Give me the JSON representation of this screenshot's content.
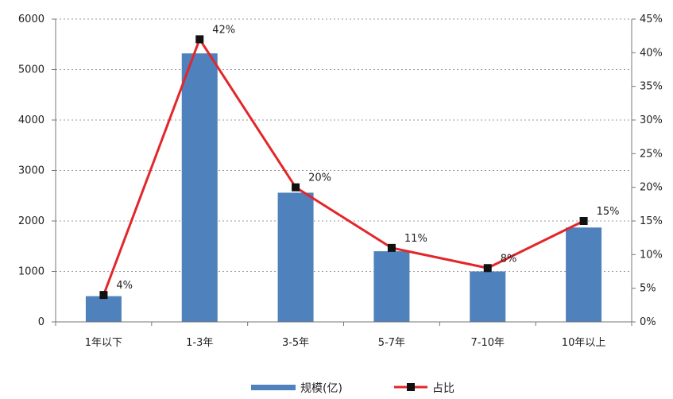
{
  "chart_data": {
    "type": "bar+line",
    "categories": [
      "1年以下",
      "1-3年",
      "3-5年",
      "5-7年",
      "7-10年",
      "10年以上"
    ],
    "series": [
      {
        "name": "规模(亿)",
        "type": "bar",
        "axis": "left",
        "values": [
          510,
          5320,
          2560,
          1400,
          1000,
          1870
        ],
        "color": "#4F81BD"
      },
      {
        "name": "占比",
        "type": "line",
        "axis": "right",
        "values": [
          4,
          42,
          20,
          11,
          8,
          15
        ],
        "data_labels": [
          "4%",
          "42%",
          "20%",
          "11%",
          "8%",
          "15%"
        ],
        "color": "#E3262A",
        "marker_color": "#111111"
      }
    ],
    "y_left": {
      "range": [
        0,
        6000
      ],
      "ticks": [
        "0",
        "1000",
        "2000",
        "3000",
        "4000",
        "5000",
        "6000"
      ]
    },
    "y_right": {
      "range": [
        0,
        45
      ],
      "ticks": [
        "0%",
        "5%",
        "10%",
        "15%",
        "20%",
        "25%",
        "30%",
        "35%",
        "40%",
        "45%"
      ]
    },
    "grid": "horizontal dashed",
    "legend_position": "bottom"
  }
}
